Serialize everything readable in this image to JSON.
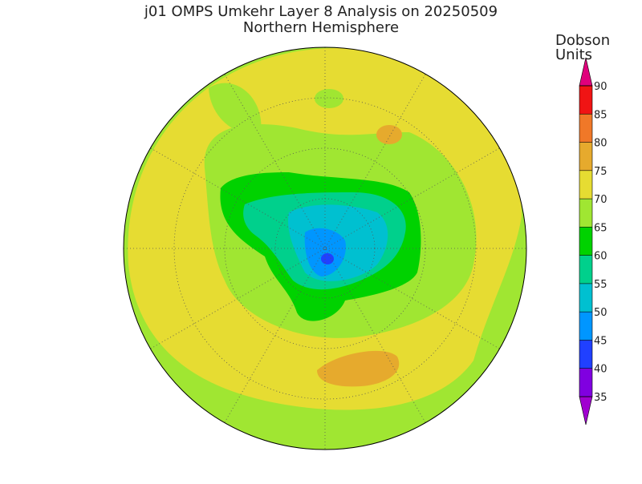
{
  "title": "j01 OMPS Umkehr Layer 8 Analysis on 20250509",
  "subtitle": "Northern Hemisphere",
  "colorbar": {
    "label_lines": [
      "Dobson",
      "Units"
    ],
    "ticks": [
      35,
      40,
      45,
      50,
      55,
      60,
      65,
      70,
      75,
      80,
      85,
      90
    ],
    "colors": [
      "#a000d0",
      "#8000e0",
      "#2040ff",
      "#0096ff",
      "#00c0d0",
      "#00d08c",
      "#00d200",
      "#a0e632",
      "#e6dc32",
      "#e6aa2d",
      "#f07828",
      "#f01414",
      "#e0007c"
    ]
  }
}
